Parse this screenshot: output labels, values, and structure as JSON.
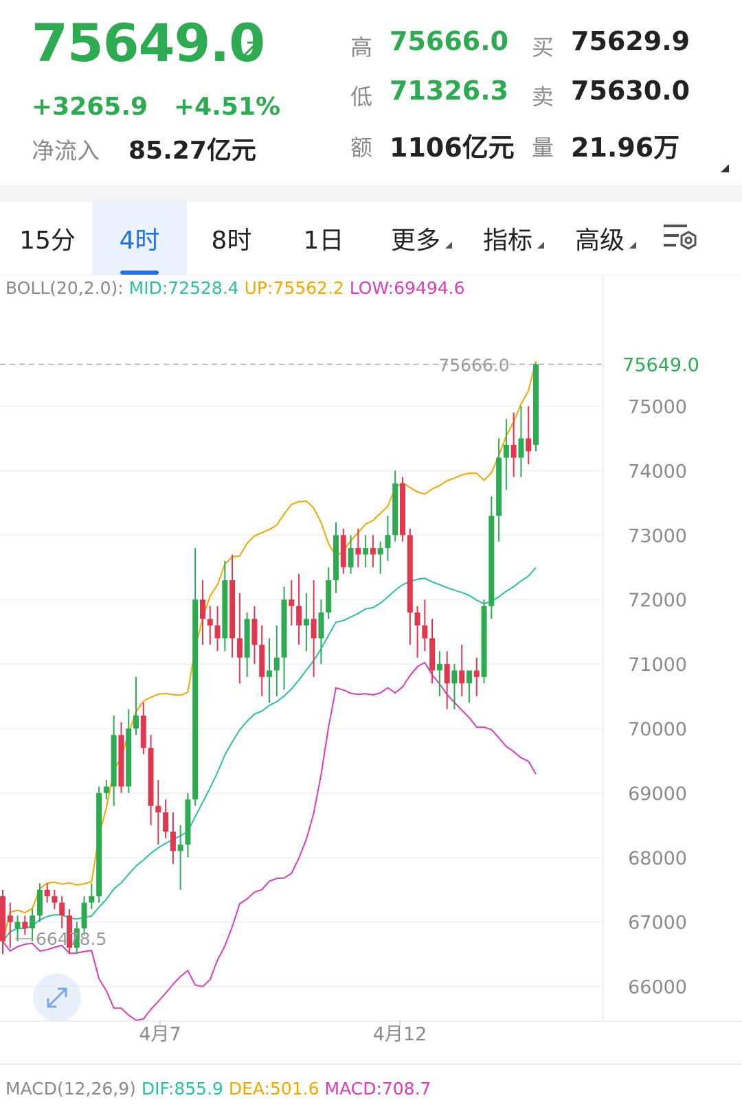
{
  "quote": {
    "price": "75649.0",
    "change": "+3265.9",
    "change_pct": "+4.51%",
    "net_inflow_label": "净流入",
    "net_inflow_value": "85.27亿元",
    "high_label": "高",
    "high_value": "75666.0",
    "low_label": "低",
    "low_value": "71326.3",
    "amount_label": "额",
    "amount_value": "1106亿元",
    "buy_label": "买",
    "buy_value": "75629.9",
    "sell_label": "卖",
    "sell_value": "75630.0",
    "volume_label": "量",
    "volume_value": "21.96万"
  },
  "tabs": [
    {
      "label": "15分"
    },
    {
      "label": "4时"
    },
    {
      "label": "8时"
    },
    {
      "label": "1日"
    },
    {
      "label": "更多"
    },
    {
      "label": "指标"
    },
    {
      "label": "高级"
    }
  ],
  "active_tab": "4时",
  "boll": {
    "name": "BOLL(20,2.0):",
    "mid": "MID:72528.4",
    "up": "UP:75562.2",
    "low": "LOW:69494.6"
  },
  "macd": {
    "name": "MACD(12,26,9)",
    "dif": "DIF:855.9",
    "dea": "DEA:501.6",
    "macd": "MACD:708.7"
  },
  "colors": {
    "up": "#2eaa52",
    "down": "#e0384f",
    "mid": "#2bbf9e",
    "upper": "#f0a800",
    "lower": "#d63fb5",
    "accent": "#1f6fe5"
  },
  "chart_data": {
    "type": "candlestick",
    "y_ticks": [
      "75000",
      "74000",
      "73000",
      "72000",
      "71000",
      "70000",
      "69000",
      "68000",
      "67000",
      "66000"
    ],
    "ylim": [
      65400,
      76800
    ],
    "x_labels": [
      "4月7",
      "4月12"
    ],
    "last_price_label": "75649.0",
    "high_marker": "75666.0",
    "low_marker": "66478.5",
    "candles": [
      [
        67400,
        67500,
        66500,
        66700
      ],
      [
        67100,
        67300,
        66600,
        67000
      ],
      [
        66900,
        67100,
        66700,
        67000
      ],
      [
        67000,
        67100,
        66800,
        66900
      ],
      [
        66900,
        67200,
        66700,
        67100
      ],
      [
        67100,
        67600,
        67000,
        67500
      ],
      [
        67500,
        67600,
        67300,
        67400
      ],
      [
        67400,
        67500,
        67200,
        67300
      ],
      [
        67300,
        67400,
        66900,
        67100
      ],
      [
        67100,
        67200,
        66500,
        66600
      ],
      [
        66600,
        67000,
        66500,
        66900
      ],
      [
        66900,
        67400,
        66800,
        67300
      ],
      [
        67300,
        67600,
        67200,
        67400
      ],
      [
        67400,
        69100,
        67300,
        69000
      ],
      [
        69000,
        69200,
        68900,
        69100
      ],
      [
        69100,
        70200,
        68800,
        69900
      ],
      [
        69900,
        70100,
        69000,
        69100
      ],
      [
        69100,
        70300,
        69000,
        70000
      ],
      [
        70000,
        70800,
        69900,
        70200
      ],
      [
        70200,
        70400,
        69600,
        69700
      ],
      [
        69700,
        69900,
        68500,
        68800
      ],
      [
        68800,
        69200,
        68200,
        68700
      ],
      [
        68700,
        68900,
        68300,
        68400
      ],
      [
        68400,
        68700,
        67900,
        68100
      ],
      [
        68100,
        68500,
        67500,
        68200
      ],
      [
        68200,
        69000,
        68000,
        68900
      ],
      [
        68900,
        72800,
        68800,
        72000
      ],
      [
        72000,
        72300,
        71300,
        71700
      ],
      [
        71700,
        71900,
        71300,
        71600
      ],
      [
        71600,
        71900,
        71200,
        71400
      ],
      [
        71400,
        72600,
        71200,
        72300
      ],
      [
        72300,
        72700,
        71100,
        71400
      ],
      [
        71400,
        72100,
        70700,
        71100
      ],
      [
        71100,
        71800,
        70800,
        71700
      ],
      [
        71700,
        71900,
        71000,
        71300
      ],
      [
        71300,
        71600,
        70500,
        70800
      ],
      [
        70800,
        71400,
        70400,
        70900
      ],
      [
        70900,
        71600,
        70500,
        71100
      ],
      [
        71100,
        72200,
        70600,
        72000
      ],
      [
        72000,
        72300,
        71600,
        71900
      ],
      [
        71900,
        72400,
        71300,
        71600
      ],
      [
        71600,
        72100,
        71200,
        71700
      ],
      [
        71700,
        72300,
        70800,
        71400
      ],
      [
        71400,
        72000,
        71000,
        71800
      ],
      [
        71800,
        72500,
        71700,
        72300
      ],
      [
        72300,
        73200,
        72100,
        73000
      ],
      [
        73000,
        73100,
        72400,
        72500
      ],
      [
        72500,
        73000,
        72400,
        72800
      ],
      [
        72800,
        73100,
        72500,
        72700
      ],
      [
        72700,
        73000,
        72500,
        72800
      ],
      [
        72800,
        73000,
        72500,
        72700
      ],
      [
        72700,
        72900,
        72400,
        72800
      ],
      [
        72800,
        73300,
        72600,
        73000
      ],
      [
        73000,
        74000,
        72900,
        73800
      ],
      [
        73800,
        73900,
        72900,
        73000
      ],
      [
        73000,
        73100,
        71300,
        71800
      ],
      [
        71800,
        71900,
        71100,
        71600
      ],
      [
        71600,
        72000,
        71200,
        71400
      ],
      [
        71400,
        71700,
        70700,
        70900
      ],
      [
        70900,
        71200,
        70500,
        71000
      ],
      [
        71000,
        71200,
        70300,
        70700
      ],
      [
        70700,
        71000,
        70300,
        70900
      ],
      [
        70900,
        71300,
        70500,
        70700
      ],
      [
        70700,
        70900,
        70400,
        70900
      ],
      [
        70900,
        71100,
        70500,
        70800
      ],
      [
        70800,
        72000,
        70700,
        71900
      ],
      [
        71900,
        73600,
        71700,
        73300
      ],
      [
        73300,
        74500,
        72900,
        74200
      ],
      [
        74200,
        74800,
        73700,
        74400
      ],
      [
        74400,
        74900,
        73900,
        74200
      ],
      [
        74200,
        75000,
        73900,
        74500
      ],
      [
        74500,
        75000,
        74100,
        74300
      ],
      [
        74400,
        75670,
        74300,
        75649
      ]
    ]
  }
}
